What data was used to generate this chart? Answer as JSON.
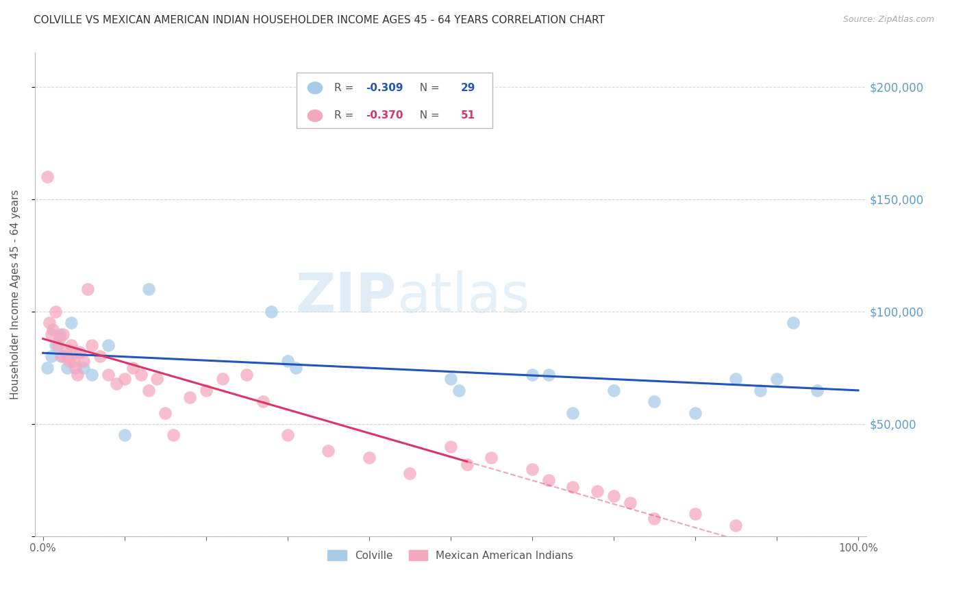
{
  "title": "COLVILLE VS MEXICAN AMERICAN INDIAN HOUSEHOLDER INCOME AGES 45 - 64 YEARS CORRELATION CHART",
  "source": "Source: ZipAtlas.com",
  "ylabel": "Householder Income Ages 45 - 64 years",
  "colville_x": [
    0.5,
    1.0,
    1.5,
    2.0,
    2.5,
    3.0,
    3.5,
    4.0,
    5.0,
    6.0,
    8.0,
    10.0,
    13.0,
    28.0,
    30.0,
    31.0,
    50.0,
    51.0,
    60.0,
    62.0,
    65.0,
    70.0,
    75.0,
    80.0,
    85.0,
    88.0,
    90.0,
    92.0,
    95.0
  ],
  "colville_y": [
    75000,
    80000,
    85000,
    90000,
    80000,
    75000,
    95000,
    82000,
    75000,
    72000,
    85000,
    45000,
    110000,
    100000,
    78000,
    75000,
    70000,
    65000,
    72000,
    72000,
    55000,
    65000,
    60000,
    55000,
    70000,
    65000,
    70000,
    95000,
    65000
  ],
  "mexican_x": [
    0.5,
    0.8,
    1.0,
    1.2,
    1.5,
    1.8,
    2.0,
    2.2,
    2.5,
    2.8,
    3.0,
    3.2,
    3.5,
    3.8,
    4.0,
    4.2,
    4.5,
    5.0,
    5.5,
    6.0,
    7.0,
    8.0,
    9.0,
    10.0,
    11.0,
    12.0,
    13.0,
    14.0,
    15.0,
    16.0,
    18.0,
    20.0,
    22.0,
    25.0,
    27.0,
    30.0,
    35.0,
    40.0,
    45.0,
    50.0,
    52.0,
    55.0,
    60.0,
    62.0,
    65.0,
    68.0,
    70.0,
    72.0,
    75.0,
    80.0,
    85.0
  ],
  "mexican_y": [
    160000,
    95000,
    90000,
    92000,
    100000,
    85000,
    88000,
    80000,
    90000,
    82000,
    80000,
    78000,
    85000,
    78000,
    75000,
    72000,
    82000,
    78000,
    110000,
    85000,
    80000,
    72000,
    68000,
    70000,
    75000,
    72000,
    65000,
    70000,
    55000,
    45000,
    62000,
    65000,
    70000,
    72000,
    60000,
    45000,
    38000,
    35000,
    28000,
    40000,
    32000,
    35000,
    30000,
    25000,
    22000,
    20000,
    18000,
    15000,
    8000,
    10000,
    5000
  ],
  "colville_color": "#a8cce8",
  "mexican_color": "#f4a8c0",
  "colville_line_color": "#2255bb",
  "mexican_line_color": "#dd3366",
  "colville_R": -0.309,
  "colville_N": 29,
  "mexican_R": -0.37,
  "mexican_N": 51,
  "ylim": [
    0,
    215000
  ],
  "xlim": [
    -1,
    101
  ],
  "yticks": [
    0,
    50000,
    100000,
    150000,
    200000
  ],
  "ytick_labels": [
    "",
    "$50,000",
    "$100,000",
    "$150,000",
    "$200,000"
  ],
  "xticks": [
    0,
    10,
    20,
    30,
    40,
    50,
    60,
    70,
    80,
    90,
    100
  ],
  "xtick_labels": [
    "0.0%",
    "",
    "",
    "",
    "",
    "",
    "",
    "",
    "",
    "",
    "100.0%"
  ],
  "background_color": "#ffffff",
  "watermark_zip": "ZIP",
  "watermark_atlas": "atlas",
  "title_fontsize": 11,
  "axis_label_color": "#5b9bd5",
  "grid_color": "#cccccc",
  "mexican_solid_end": 52.0,
  "colville_label": "Colville",
  "mexican_label": "Mexican American Indians"
}
